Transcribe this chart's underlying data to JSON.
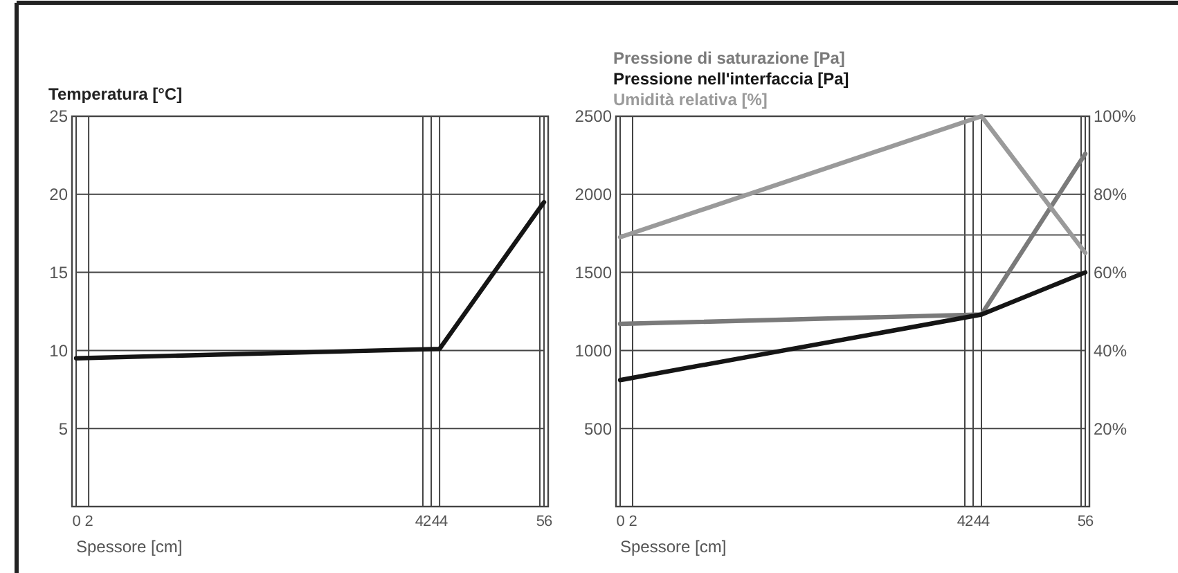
{
  "chart_data": [
    {
      "type": "line",
      "title": "Temperatura [°C]",
      "xlabel": "Spessore [cm]",
      "x": [
        0,
        43.5,
        56
      ],
      "xlim": [
        0,
        56
      ],
      "xticks": [
        {
          "value": 0,
          "label": "0"
        },
        {
          "value": 1.5,
          "label": "2"
        },
        {
          "value": 41.5,
          "label": "42"
        },
        {
          "value": 42.5,
          "label": null
        },
        {
          "value": 43.5,
          "label": "44"
        },
        {
          "value": 55.5,
          "label": null
        },
        {
          "value": 56,
          "label": "56"
        }
      ],
      "ylim": [
        0,
        25
      ],
      "yticks": [
        5,
        10,
        15,
        20,
        25
      ],
      "grid": true,
      "series": [
        {
          "color": "#151515",
          "values": [
            9.5,
            10.1,
            19.5
          ]
        }
      ]
    },
    {
      "type": "line",
      "xlabel": "Spessore [cm]",
      "x": [
        0,
        43.5,
        56
      ],
      "xlim": [
        0,
        56
      ],
      "xticks": [
        {
          "value": 0,
          "label": "0"
        },
        {
          "value": 1.5,
          "label": "2"
        },
        {
          "value": 41.5,
          "label": "42"
        },
        {
          "value": 42.5,
          "label": null
        },
        {
          "value": 43.5,
          "label": "44"
        },
        {
          "value": 55.5,
          "label": null
        },
        {
          "value": 56,
          "label": "56"
        }
      ],
      "ylim": [
        0,
        2500
      ],
      "yticks": [
        500,
        1000,
        1500,
        2000,
        2500
      ],
      "y2lim": [
        0,
        100
      ],
      "y2ticks": [
        {
          "value": 20,
          "label": "20%"
        },
        {
          "value": 40,
          "label": "40%"
        },
        {
          "value": 60,
          "label": "60%"
        },
        {
          "value": 80,
          "label": "80%"
        },
        {
          "value": 100,
          "label": "100%"
        }
      ],
      "grid": true,
      "legend": "top",
      "ref_lines": [
        {
          "axis": "y",
          "value": 1740,
          "color": "#555555"
        }
      ],
      "series": [
        {
          "name": "Pressione di saturazione [Pa]",
          "color": "#7a7a7a",
          "values": [
            1170,
            1230,
            2260
          ]
        },
        {
          "name": "Pressione nell'interfaccia [Pa]",
          "color": "#151515",
          "values": [
            810,
            1230,
            1500
          ]
        },
        {
          "name": "Umidità relativa [%]",
          "color": "#9a9a9a",
          "axis": "y2",
          "values": [
            69,
            100,
            65
          ]
        }
      ]
    }
  ]
}
